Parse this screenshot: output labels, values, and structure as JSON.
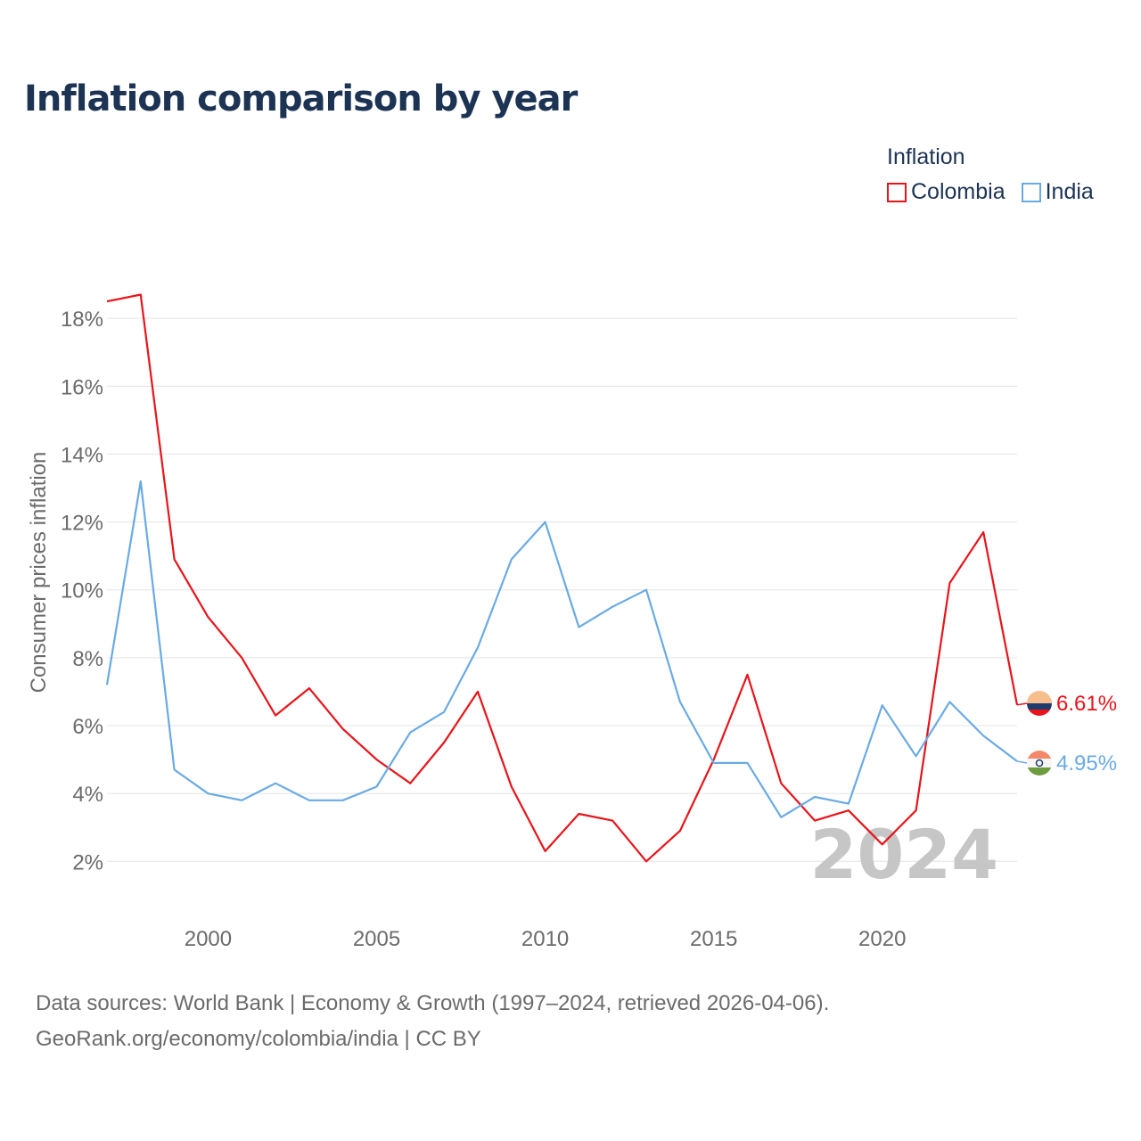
{
  "title": "Inflation comparison by year",
  "legend": {
    "title": "Inflation",
    "items": [
      {
        "name": "Colombia",
        "color": "#e8141a"
      },
      {
        "name": "India",
        "color": "#6aaae4"
      }
    ]
  },
  "chart_data": {
    "type": "line",
    "title": "Inflation comparison by year",
    "xlabel": "",
    "ylabel": "Consumer prices inflation",
    "xlim": [
      1997,
      2024
    ],
    "ylim": [
      0.8,
      19.5
    ],
    "x_ticks": [
      2000,
      2005,
      2010,
      2015,
      2020
    ],
    "y_ticks": [
      2,
      4,
      6,
      8,
      10,
      12,
      14,
      16,
      18
    ],
    "y_tick_labels": [
      "2%",
      "4%",
      "6%",
      "8%",
      "10%",
      "12%",
      "14%",
      "16%",
      "18%"
    ],
    "grid": true,
    "x": [
      1997,
      1998,
      1999,
      2000,
      2001,
      2002,
      2003,
      2004,
      2005,
      2006,
      2007,
      2008,
      2009,
      2010,
      2011,
      2012,
      2013,
      2014,
      2015,
      2016,
      2017,
      2018,
      2019,
      2020,
      2021,
      2022,
      2023,
      2024
    ],
    "series": [
      {
        "name": "Colombia",
        "color": "#e8141a",
        "values": [
          18.5,
          18.7,
          10.9,
          9.2,
          8.0,
          6.3,
          7.1,
          5.9,
          5.0,
          4.3,
          5.5,
          7.0,
          4.2,
          2.3,
          3.4,
          3.2,
          2.0,
          2.9,
          5.0,
          7.5,
          4.3,
          3.2,
          3.5,
          2.5,
          3.5,
          10.2,
          11.7,
          6.61
        ]
      },
      {
        "name": "India",
        "color": "#6aaae4",
        "values": [
          7.2,
          13.2,
          4.7,
          4.0,
          3.8,
          4.3,
          3.8,
          3.8,
          4.2,
          5.8,
          6.4,
          8.3,
          10.9,
          12.0,
          8.9,
          9.5,
          10.0,
          6.7,
          4.9,
          4.9,
          3.3,
          3.9,
          3.7,
          6.6,
          5.1,
          6.7,
          5.7,
          4.95
        ]
      }
    ],
    "end_labels": [
      {
        "series": "Colombia",
        "text": "6.61%"
      },
      {
        "series": "India",
        "text": "4.95%"
      }
    ],
    "watermark_year": "2024"
  },
  "source": {
    "line1": "Data sources: World Bank | Economy & Growth (1997–2024, retrieved 2026-04-06).",
    "line2": "GeoRank.org/economy/colombia/india | CC BY"
  }
}
